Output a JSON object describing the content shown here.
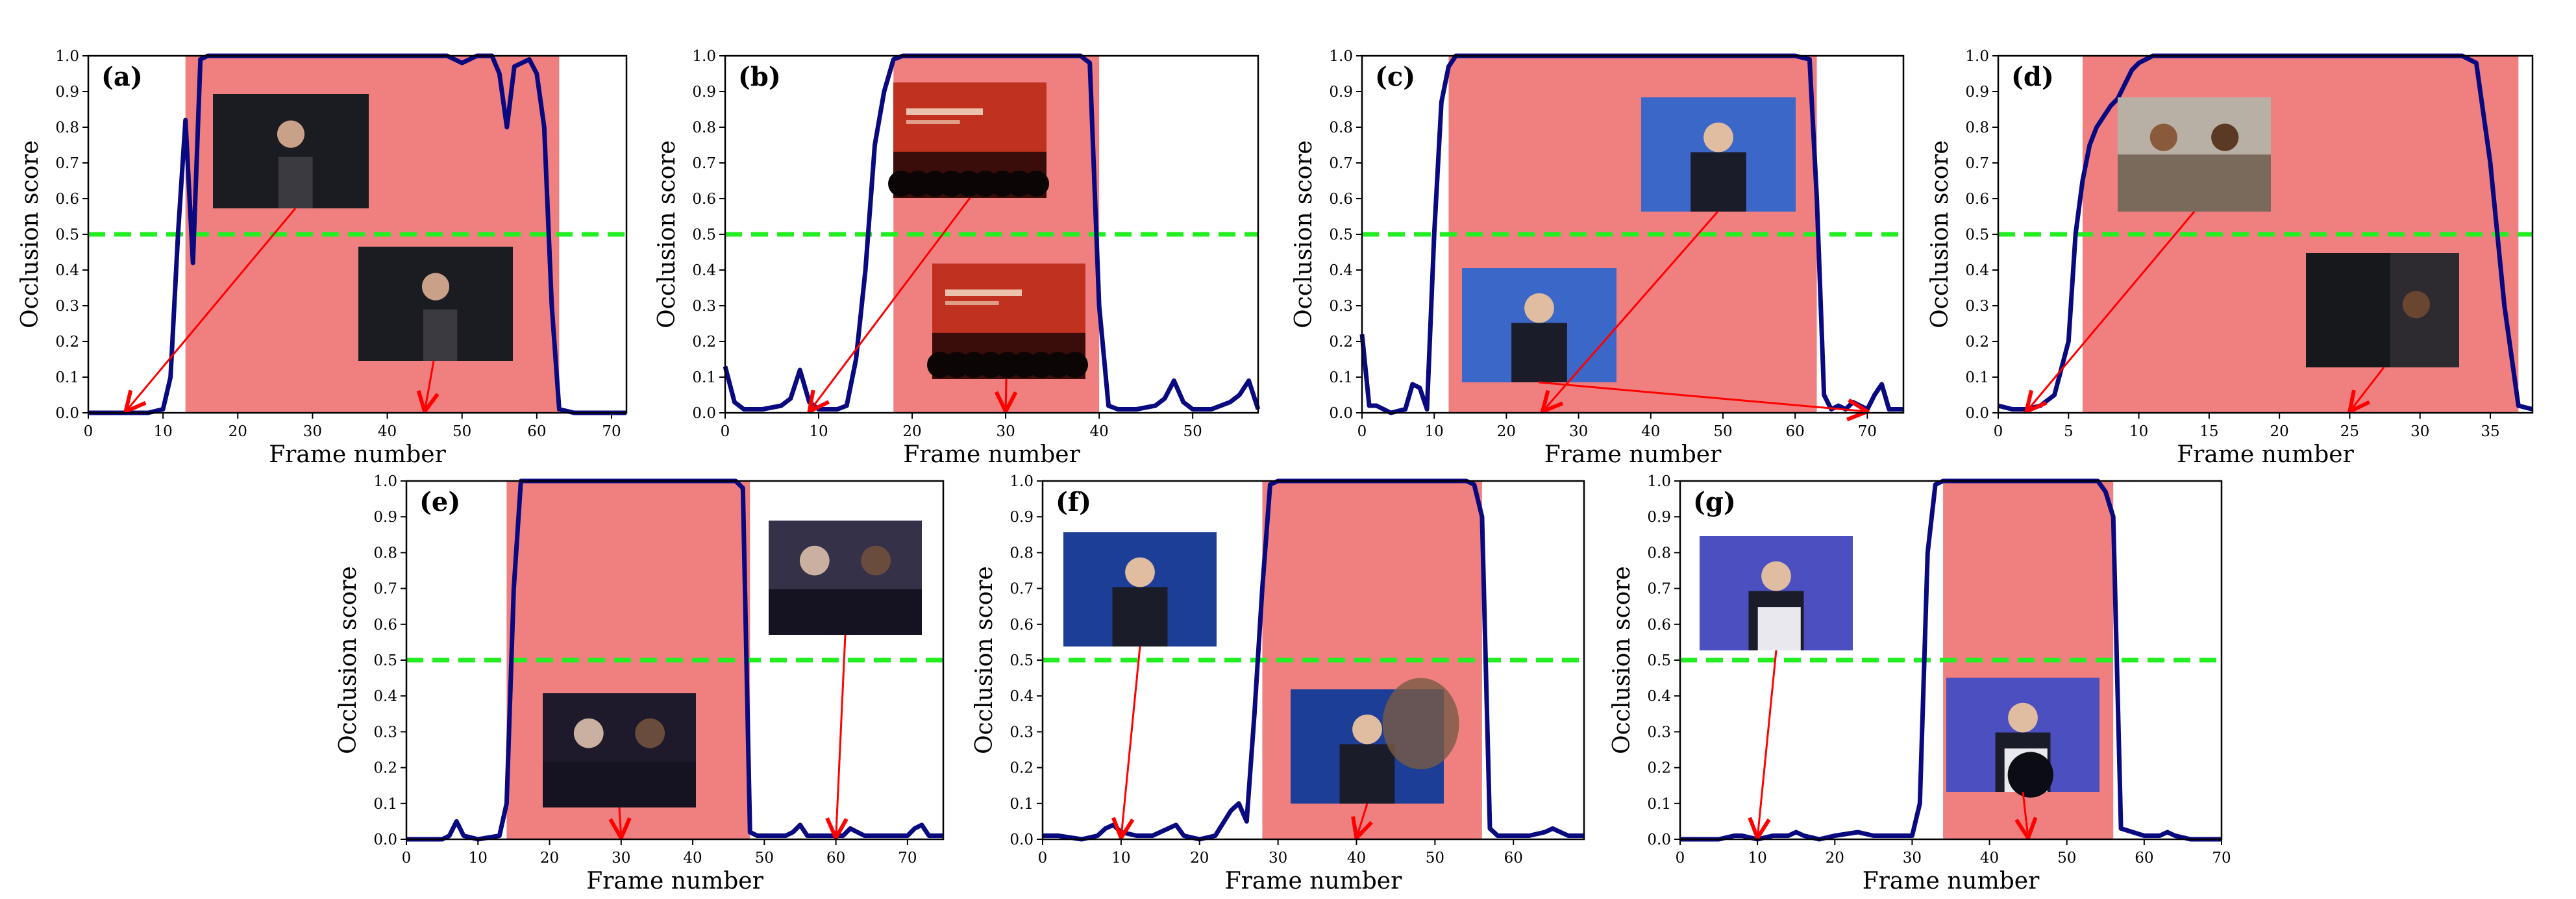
{
  "figure": {
    "threshold": 0.5
  },
  "chart_data": [
    {
      "type": "line",
      "panel_label": "(a)",
      "xlabel": "Frame number",
      "ylabel": "Occlusion score",
      "xlim": [
        0,
        72
      ],
      "ylim": [
        0,
        1.0
      ],
      "xticks": [
        0,
        10,
        20,
        30,
        40,
        50,
        60,
        70
      ],
      "yticks": [
        0.0,
        0.1,
        0.2,
        0.3,
        0.4,
        0.5,
        0.6,
        0.7,
        0.8,
        0.9,
        1.0
      ],
      "occluded_range": [
        13,
        63
      ],
      "threshold": 0.5,
      "arrow_targets": [
        5,
        45
      ],
      "series": [
        {
          "x": [
            0,
            2,
            4,
            6,
            8,
            10,
            11,
            12,
            13,
            14,
            15,
            16,
            17,
            18,
            20,
            25,
            30,
            35,
            40,
            45,
            48,
            50,
            52,
            54,
            55,
            56,
            57,
            58,
            59,
            60,
            61,
            62,
            63,
            65,
            68,
            70,
            72
          ],
          "y": [
            0,
            0,
            0,
            0,
            0,
            0.01,
            0.1,
            0.5,
            0.82,
            0.42,
            0.99,
            1.0,
            1.0,
            1.0,
            1.0,
            1.0,
            1.0,
            1.0,
            1.0,
            1.0,
            1.0,
            0.98,
            1.0,
            1.0,
            0.95,
            0.8,
            0.97,
            0.98,
            0.99,
            0.95,
            0.8,
            0.3,
            0.01,
            0,
            0,
            0,
            0
          ]
        }
      ]
    },
    {
      "type": "line",
      "panel_label": "(b)",
      "xlabel": "Frame number",
      "ylabel": "Occlusion score",
      "xlim": [
        0,
        57
      ],
      "ylim": [
        0,
        1.0
      ],
      "xticks": [
        0,
        10,
        20,
        30,
        40,
        50
      ],
      "yticks": [
        0.0,
        0.1,
        0.2,
        0.3,
        0.4,
        0.5,
        0.6,
        0.7,
        0.8,
        0.9,
        1.0
      ],
      "occluded_range": [
        18,
        40
      ],
      "threshold": 0.5,
      "arrow_targets": [
        9,
        30
      ],
      "series": [
        {
          "x": [
            0,
            1,
            2,
            4,
            6,
            7,
            8,
            9,
            10,
            12,
            13,
            14,
            15,
            16,
            17,
            18,
            19,
            20,
            25,
            30,
            35,
            38,
            39,
            40,
            41,
            42,
            44,
            46,
            47,
            48,
            49,
            50,
            52,
            54,
            55,
            56,
            57
          ],
          "y": [
            0.13,
            0.03,
            0.01,
            0.01,
            0.02,
            0.04,
            0.12,
            0.03,
            0.01,
            0.01,
            0.02,
            0.15,
            0.4,
            0.75,
            0.9,
            0.99,
            1.0,
            1.0,
            1.0,
            1.0,
            1.0,
            1.0,
            0.98,
            0.3,
            0.02,
            0.01,
            0.01,
            0.02,
            0.04,
            0.09,
            0.03,
            0.01,
            0.01,
            0.03,
            0.05,
            0.09,
            0.01
          ]
        }
      ]
    },
    {
      "type": "line",
      "panel_label": "(c)",
      "xlabel": "Frame number",
      "ylabel": "Occlusion score",
      "xlim": [
        0,
        75
      ],
      "ylim": [
        0,
        1.0
      ],
      "xticks": [
        0,
        10,
        20,
        30,
        40,
        50,
        60,
        70
      ],
      "yticks": [
        0.0,
        0.1,
        0.2,
        0.3,
        0.4,
        0.5,
        0.6,
        0.7,
        0.8,
        0.9,
        1.0
      ],
      "occluded_range": [
        12,
        63
      ],
      "threshold": 0.5,
      "arrow_targets": [
        25,
        70
      ],
      "series": [
        {
          "x": [
            0,
            1,
            2,
            4,
            6,
            7,
            8,
            9,
            10,
            11,
            12,
            13,
            15,
            20,
            30,
            40,
            50,
            60,
            62,
            63,
            64,
            65,
            66,
            67,
            68,
            70,
            71,
            72,
            73,
            74,
            75
          ],
          "y": [
            0.22,
            0.02,
            0.02,
            0,
            0.01,
            0.08,
            0.07,
            0.01,
            0.5,
            0.87,
            0.97,
            1.0,
            1.0,
            1.0,
            1.0,
            1.0,
            1.0,
            1.0,
            0.99,
            0.6,
            0.05,
            0.01,
            0.02,
            0.01,
            0.03,
            0.01,
            0.05,
            0.08,
            0.01,
            0.01,
            0.01
          ]
        }
      ]
    },
    {
      "type": "line",
      "panel_label": "(d)",
      "xlabel": "Frame number",
      "ylabel": "Occlusion score",
      "xlim": [
        0,
        38
      ],
      "ylim": [
        0,
        1.0
      ],
      "xticks": [
        0,
        5,
        10,
        15,
        20,
        25,
        30,
        35
      ],
      "yticks": [
        0.0,
        0.1,
        0.2,
        0.3,
        0.4,
        0.5,
        0.6,
        0.7,
        0.8,
        0.9,
        1.0
      ],
      "occluded_range": [
        6,
        37
      ],
      "threshold": 0.5,
      "arrow_targets": [
        2,
        25
      ],
      "series": [
        {
          "x": [
            0,
            1,
            2,
            3,
            4,
            5,
            5.5,
            6,
            6.5,
            7,
            7.5,
            8,
            8.5,
            9,
            9.5,
            10,
            11,
            12,
            15,
            20,
            25,
            30,
            33,
            34,
            35,
            36,
            37,
            38
          ],
          "y": [
            0.02,
            0.01,
            0.01,
            0.02,
            0.05,
            0.2,
            0.5,
            0.65,
            0.75,
            0.8,
            0.83,
            0.86,
            0.88,
            0.92,
            0.96,
            0.98,
            1.0,
            1.0,
            1.0,
            1.0,
            1.0,
            1.0,
            1.0,
            0.98,
            0.7,
            0.3,
            0.02,
            0.01
          ]
        }
      ]
    },
    {
      "type": "line",
      "panel_label": "(e)",
      "xlabel": "Frame number",
      "ylabel": "Occlusion score",
      "xlim": [
        0,
        75
      ],
      "ylim": [
        0,
        1.0
      ],
      "xticks": [
        0,
        10,
        20,
        30,
        40,
        50,
        60,
        70
      ],
      "yticks": [
        0.0,
        0.1,
        0.2,
        0.3,
        0.4,
        0.5,
        0.6,
        0.7,
        0.8,
        0.9,
        1.0
      ],
      "occluded_range": [
        14,
        48
      ],
      "threshold": 0.5,
      "arrow_targets": [
        30,
        60
      ],
      "series": [
        {
          "x": [
            0,
            5,
            6,
            7,
            8,
            10,
            13,
            14,
            15,
            16,
            17,
            20,
            30,
            40,
            46,
            47,
            48,
            49,
            50,
            53,
            54,
            55,
            56,
            60,
            61,
            62,
            63,
            64,
            65,
            70,
            71,
            72,
            73,
            75
          ],
          "y": [
            0,
            0,
            0.01,
            0.05,
            0.01,
            0,
            0.01,
            0.1,
            0.7,
            1.0,
            1.0,
            1.0,
            1.0,
            1.0,
            1.0,
            0.98,
            0.02,
            0.01,
            0.01,
            0.01,
            0.02,
            0.04,
            0.01,
            0.01,
            0.01,
            0.03,
            0.02,
            0.01,
            0.01,
            0.01,
            0.03,
            0.04,
            0.01,
            0.01
          ]
        }
      ]
    },
    {
      "type": "line",
      "panel_label": "(f)",
      "xlabel": "Frame number",
      "ylabel": "Occlusion score",
      "xlim": [
        0,
        69
      ],
      "ylim": [
        0,
        1.0
      ],
      "xticks": [
        0,
        10,
        20,
        30,
        40,
        50,
        60
      ],
      "yticks": [
        0.0,
        0.1,
        0.2,
        0.3,
        0.4,
        0.5,
        0.6,
        0.7,
        0.8,
        0.9,
        1.0
      ],
      "occluded_range": [
        28,
        56
      ],
      "threshold": 0.5,
      "arrow_targets": [
        10,
        40
      ],
      "series": [
        {
          "x": [
            0,
            2,
            5,
            7,
            8,
            9,
            10,
            12,
            14,
            16,
            17,
            18,
            20,
            22,
            24,
            25,
            26,
            27,
            28,
            29,
            30,
            40,
            50,
            54,
            55,
            56,
            57,
            58,
            60,
            62,
            64,
            65,
            66,
            67,
            68,
            69
          ],
          "y": [
            0.01,
            0.01,
            0,
            0.01,
            0.03,
            0.04,
            0.02,
            0.01,
            0.01,
            0.03,
            0.04,
            0.01,
            0,
            0.01,
            0.08,
            0.1,
            0.05,
            0.35,
            0.7,
            0.99,
            1.0,
            1.0,
            1.0,
            1.0,
            0.99,
            0.9,
            0.03,
            0.01,
            0.01,
            0.01,
            0.02,
            0.03,
            0.02,
            0.01,
            0.01,
            0.01
          ]
        }
      ]
    },
    {
      "type": "line",
      "panel_label": "(g)",
      "xlabel": "Frame number",
      "ylabel": "Occlusion score",
      "xlim": [
        0,
        70
      ],
      "ylim": [
        0,
        1.0
      ],
      "xticks": [
        0,
        10,
        20,
        30,
        40,
        50,
        60,
        70
      ],
      "yticks": [
        0.0,
        0.1,
        0.2,
        0.3,
        0.4,
        0.5,
        0.6,
        0.7,
        0.8,
        0.9,
        1.0
      ],
      "occluded_range": [
        34,
        56
      ],
      "threshold": 0.5,
      "arrow_targets": [
        10,
        45
      ],
      "series": [
        {
          "x": [
            0,
            5,
            7,
            8,
            10,
            12,
            14,
            15,
            16,
            18,
            20,
            23,
            25,
            30,
            31,
            32,
            33,
            34,
            40,
            50,
            54,
            55,
            56,
            57,
            60,
            62,
            63,
            64,
            66,
            70
          ],
          "y": [
            0,
            0,
            0.01,
            0.01,
            0,
            0.01,
            0.01,
            0.02,
            0.01,
            0,
            0.01,
            0.02,
            0.01,
            0.01,
            0.1,
            0.8,
            0.99,
            1.0,
            1.0,
            1.0,
            1.0,
            0.97,
            0.9,
            0.03,
            0.01,
            0.01,
            0.02,
            0.01,
            0,
            0
          ]
        }
      ]
    }
  ]
}
